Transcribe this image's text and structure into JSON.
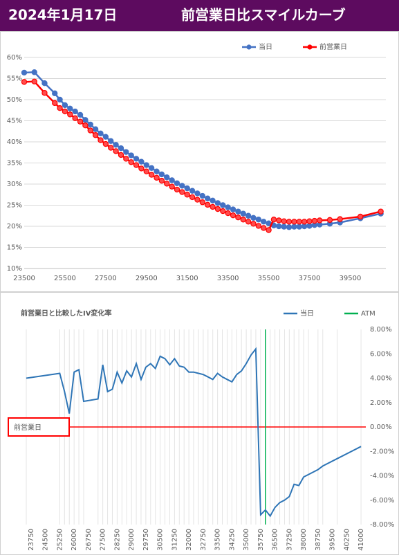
{
  "header": {
    "date": "2024年1月17日",
    "title": "前営業日比スマイルカーブ"
  },
  "chart_data": [
    {
      "type": "line",
      "legend": "top-right",
      "grid": "y",
      "markers": true,
      "xlim": [
        23500,
        41250
      ],
      "ylim": [
        10,
        60
      ],
      "xticks": [
        23500,
        25500,
        27500,
        29500,
        31500,
        33500,
        35500,
        37500,
        39500
      ],
      "yticks": [
        {
          "value": 10,
          "label": "10%"
        },
        {
          "value": 15,
          "label": "15%"
        },
        {
          "value": 20,
          "label": "20%"
        },
        {
          "value": 25,
          "label": "25%"
        },
        {
          "value": 30,
          "label": "30%"
        },
        {
          "value": 35,
          "label": "35%"
        },
        {
          "value": 40,
          "label": "40%"
        },
        {
          "value": 45,
          "label": "45%"
        },
        {
          "value": 50,
          "label": "50%"
        },
        {
          "value": 55,
          "label": "55%"
        },
        {
          "value": 60,
          "label": "60%"
        }
      ],
      "x": [
        23500,
        24000,
        24500,
        25000,
        25250,
        25500,
        25750,
        26000,
        26250,
        26500,
        26750,
        27000,
        27250,
        27500,
        27750,
        28000,
        28250,
        28500,
        28750,
        29000,
        29250,
        29500,
        29750,
        30000,
        30250,
        30500,
        30750,
        31000,
        31250,
        31500,
        31750,
        32000,
        32250,
        32500,
        32750,
        33000,
        33250,
        33500,
        33750,
        34000,
        34250,
        34500,
        34750,
        35000,
        35250,
        35500,
        35750,
        36000,
        36250,
        36500,
        36750,
        37000,
        37250,
        37500,
        37750,
        38000,
        38500,
        39000,
        40000,
        41000
      ],
      "series": [
        {
          "name": "当日",
          "color": "#4472c4",
          "values": [
            56.4,
            56.5,
            53.9,
            51.5,
            50.0,
            48.7,
            47.9,
            47.2,
            46.4,
            45.2,
            44.1,
            43.0,
            42.0,
            41.2,
            40.2,
            39.3,
            38.5,
            37.6,
            36.8,
            36.0,
            35.3,
            34.5,
            33.8,
            33.0,
            32.3,
            31.6,
            30.9,
            30.2,
            29.6,
            29.0,
            28.4,
            27.8,
            27.2,
            26.6,
            26.1,
            25.5,
            25.0,
            24.5,
            24.0,
            23.5,
            23.0,
            22.5,
            22.0,
            21.6,
            21.1,
            20.7,
            20.2,
            20.0,
            19.9,
            19.8,
            19.9,
            19.9,
            20.0,
            20.1,
            20.3,
            20.4,
            20.6,
            20.9,
            21.9,
            23.0
          ]
        },
        {
          "name": "前営業日",
          "color": "#ff0000",
          "values": [
            54.2,
            54.3,
            51.6,
            49.2,
            48.0,
            47.2,
            46.5,
            45.6,
            44.8,
            43.9,
            42.7,
            41.6,
            40.4,
            39.5,
            38.6,
            37.8,
            36.9,
            36.0,
            35.2,
            34.5,
            33.7,
            33.0,
            32.2,
            31.5,
            30.8,
            30.1,
            29.4,
            28.7,
            28.1,
            27.5,
            26.9,
            26.3,
            25.7,
            25.1,
            24.6,
            24.1,
            23.6,
            23.1,
            22.6,
            22.1,
            21.6,
            21.1,
            20.6,
            20.1,
            19.6,
            19.1,
            21.6,
            21.4,
            21.2,
            21.1,
            21.1,
            21.1,
            21.1,
            21.2,
            21.3,
            21.4,
            21.5,
            21.7,
            22.3,
            23.5
          ]
        }
      ]
    },
    {
      "type": "line",
      "title": "前営業日と比較したIV変化率",
      "legend": "top-right",
      "grid": "x",
      "markers": false,
      "y_axis_side": "right",
      "x_label_rotation": -90,
      "xlim": [
        23500,
        41250
      ],
      "ylim": [
        -8,
        8
      ],
      "xticks": [
        23750,
        24500,
        25250,
        26000,
        26750,
        27500,
        28250,
        29000,
        29750,
        30500,
        31250,
        32000,
        32750,
        33500,
        34250,
        35000,
        35750,
        36500,
        37250,
        38000,
        38750,
        39500,
        40250,
        41000
      ],
      "yticks": [
        {
          "value": -8,
          "label": "-8.00%"
        },
        {
          "value": -6,
          "label": "-6.00%"
        },
        {
          "value": -4,
          "label": "-4.00%"
        },
        {
          "value": -2,
          "label": "-2.00%"
        },
        {
          "value": 0,
          "label": "0.00%"
        },
        {
          "value": 2,
          "label": "2.00%"
        },
        {
          "value": 4,
          "label": "4.00%"
        },
        {
          "value": 6,
          "label": "6.00%"
        },
        {
          "value": 8,
          "label": "8.00%"
        }
      ],
      "x": [
        23500,
        25250,
        25500,
        25750,
        26000,
        26250,
        26500,
        27250,
        27500,
        27750,
        28000,
        28250,
        28500,
        28750,
        29000,
        29250,
        29500,
        29750,
        30000,
        30250,
        30500,
        30750,
        31000,
        31250,
        31500,
        31750,
        32000,
        32250,
        32500,
        32750,
        33000,
        33250,
        33500,
        33750,
        34000,
        34250,
        34500,
        34750,
        35000,
        35250,
        35500,
        35750,
        36000,
        36250,
        36500,
        36750,
        37000,
        37250,
        37500,
        37750,
        38000,
        38250,
        38750,
        39000,
        39750,
        41000
      ],
      "series": [
        {
          "name": "当日",
          "color": "#2e75b6",
          "values": [
            4.0,
            4.4,
            2.9,
            1.1,
            4.5,
            4.7,
            2.1,
            2.3,
            5.1,
            2.9,
            3.1,
            4.5,
            3.6,
            4.6,
            4.1,
            5.2,
            3.9,
            4.9,
            5.2,
            4.8,
            5.8,
            5.6,
            5.1,
            5.6,
            5.0,
            4.9,
            4.5,
            4.5,
            4.4,
            4.3,
            4.1,
            3.9,
            4.4,
            4.1,
            3.9,
            3.7,
            4.3,
            4.6,
            5.2,
            5.9,
            6.4,
            -7.2,
            -6.8,
            -7.3,
            -6.6,
            -6.2,
            -6.0,
            -5.7,
            -4.7,
            -4.8,
            -4.1,
            -3.9,
            -3.5,
            -3.2,
            -2.6,
            -1.6
          ]
        }
      ],
      "vertical_lines": [
        {
          "name": "ATM",
          "color": "#00b050",
          "x": 36000
        }
      ],
      "horizontal_lines": [
        {
          "label": "前営業日",
          "color": "#ff0000",
          "value": 0
        }
      ]
    }
  ]
}
